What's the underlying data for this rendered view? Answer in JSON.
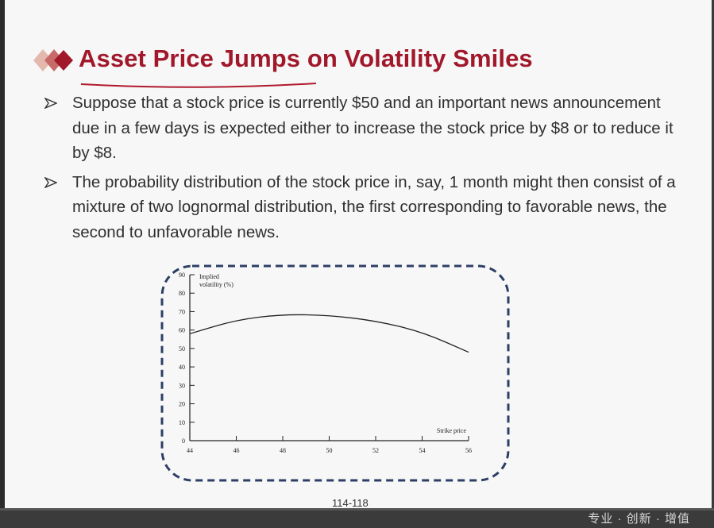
{
  "slide": {
    "title": "Asset Price Jumps on Volatility Smiles",
    "bullets": [
      {
        "text": "Suppose that a stock price is currently $50 and an important news announcement due in a few days is expected either to increase the stock price by $8 or to reduce it by $8."
      },
      {
        "text": "The probability distribution of the stock price in, say, 1 month might then consist of a mixture of two lognormal distribution, the first corresponding to favorable news, the second to unfavorable news."
      }
    ],
    "page_number": "114-118",
    "footer_text": "专业 · 创新 · 增值"
  },
  "colors": {
    "title": "#a0182a",
    "frame": "#2e3f66",
    "diamond_dark": "#a0182a",
    "diamond_light": "#e5b8ad"
  },
  "chart_data": {
    "type": "line",
    "ylabel_lines": [
      "Implied",
      "volatility (%)"
    ],
    "xlabel": "Strike price",
    "x_ticks": [
      44,
      46,
      48,
      50,
      52,
      54,
      56
    ],
    "y_ticks": [
      0,
      10,
      20,
      30,
      40,
      50,
      60,
      70,
      80,
      90
    ],
    "xlim": [
      44,
      56
    ],
    "ylim": [
      0,
      90
    ],
    "grid": false,
    "series": [
      {
        "x": [
          44,
          46,
          48,
          50,
          52,
          54,
          56
        ],
        "y": [
          58,
          65.5,
          68.5,
          68,
          65,
          59,
          48
        ]
      }
    ]
  }
}
